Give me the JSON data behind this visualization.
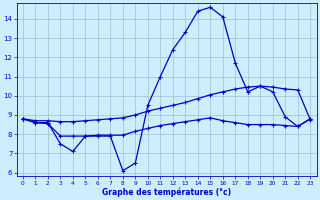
{
  "xlabel": "Graphe des températures (°c)",
  "background_color": "#cceeff",
  "grid_color": "#aabbcc",
  "line_color": "#0000cc",
  "ylim": [
    5.8,
    14.8
  ],
  "xlim": [
    -0.5,
    23.5
  ],
  "yticks": [
    6,
    7,
    8,
    9,
    10,
    11,
    12,
    13,
    14
  ],
  "xticks": [
    0,
    1,
    2,
    3,
    4,
    5,
    6,
    7,
    8,
    9,
    10,
    11,
    12,
    13,
    14,
    15,
    16,
    17,
    18,
    19,
    20,
    21,
    22,
    23
  ],
  "hours": [
    0,
    1,
    2,
    3,
    4,
    5,
    6,
    7,
    8,
    9,
    10,
    11,
    12,
    13,
    14,
    15,
    16,
    17,
    18,
    19,
    20,
    21,
    22,
    23
  ],
  "temp_actual": [
    8.8,
    8.6,
    8.6,
    7.5,
    7.1,
    7.9,
    7.9,
    7.9,
    6.1,
    6.5,
    9.5,
    11.0,
    12.4,
    13.3,
    14.4,
    14.6,
    14.1,
    11.7,
    10.2,
    10.5,
    10.2,
    8.9,
    8.4,
    8.8
  ],
  "temp_upper": [
    8.8,
    8.7,
    8.7,
    8.65,
    8.65,
    8.7,
    8.75,
    8.8,
    8.85,
    9.0,
    9.2,
    9.35,
    9.5,
    9.65,
    9.85,
    10.05,
    10.2,
    10.35,
    10.45,
    10.5,
    10.45,
    10.35,
    10.3,
    8.75
  ],
  "temp_lower": [
    8.8,
    8.6,
    8.55,
    7.9,
    7.9,
    7.9,
    7.95,
    7.95,
    7.95,
    8.15,
    8.3,
    8.45,
    8.55,
    8.65,
    8.75,
    8.85,
    8.7,
    8.6,
    8.5,
    8.5,
    8.5,
    8.45,
    8.4,
    8.8
  ]
}
